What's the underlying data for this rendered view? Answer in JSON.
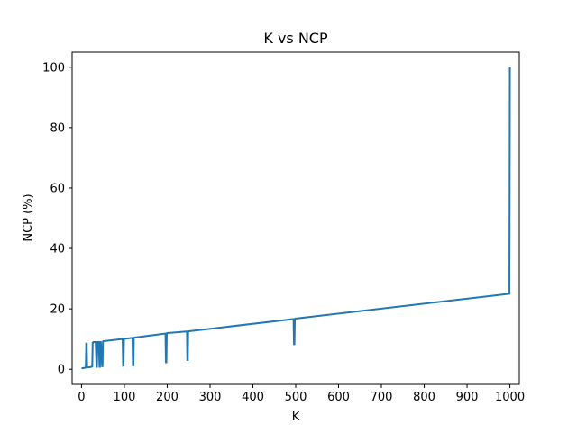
{
  "chart_data": {
    "type": "line",
    "title": "K vs NCP",
    "xlabel": "K",
    "ylabel": "NCP (%)",
    "xlim": [
      -22,
      1022
    ],
    "ylim": [
      -5,
      105
    ],
    "xticks": [
      0,
      100,
      200,
      300,
      400,
      500,
      600,
      700,
      800,
      900,
      1000
    ],
    "yticks": [
      0,
      20,
      40,
      60,
      80,
      100
    ],
    "grid": false,
    "series": [
      {
        "name": "NCP",
        "color": "#1f77b4",
        "x": [
          0,
          9,
          10,
          11,
          12,
          13,
          14,
          20,
          25,
          26,
          27,
          28,
          33,
          35,
          36,
          37,
          40,
          42,
          43,
          44,
          45,
          48,
          49,
          50,
          51,
          52,
          95,
          96,
          97,
          98,
          99,
          100,
          101,
          118,
          119,
          120,
          121,
          122,
          123,
          124,
          195,
          196,
          197,
          198,
          199,
          200,
          201,
          245,
          246,
          247,
          248,
          249,
          250,
          251,
          494,
          495,
          496,
          497,
          498,
          499,
          500,
          501,
          999,
          1000
        ],
        "y": [
          0.3,
          0.5,
          0.6,
          8.5,
          8.5,
          0.8,
          0.6,
          0.7,
          0.9,
          8.8,
          8.8,
          9.0,
          9.0,
          0.8,
          0.8,
          9.0,
          9.0,
          0.8,
          0.8,
          9.0,
          9.0,
          1.0,
          1.0,
          9.2,
          9.3,
          9.3,
          10.0,
          10.0,
          1.2,
          1.2,
          10.0,
          10.1,
          10.1,
          10.4,
          10.4,
          1.3,
          1.3,
          10.4,
          10.5,
          10.5,
          11.8,
          11.8,
          2.3,
          2.3,
          11.8,
          12.0,
          12.0,
          12.5,
          12.5,
          3.1,
          3.1,
          12.5,
          12.6,
          12.6,
          16.6,
          16.6,
          8.3,
          8.3,
          16.6,
          16.8,
          16.8,
          16.8,
          25.0,
          100
        ]
      }
    ]
  }
}
